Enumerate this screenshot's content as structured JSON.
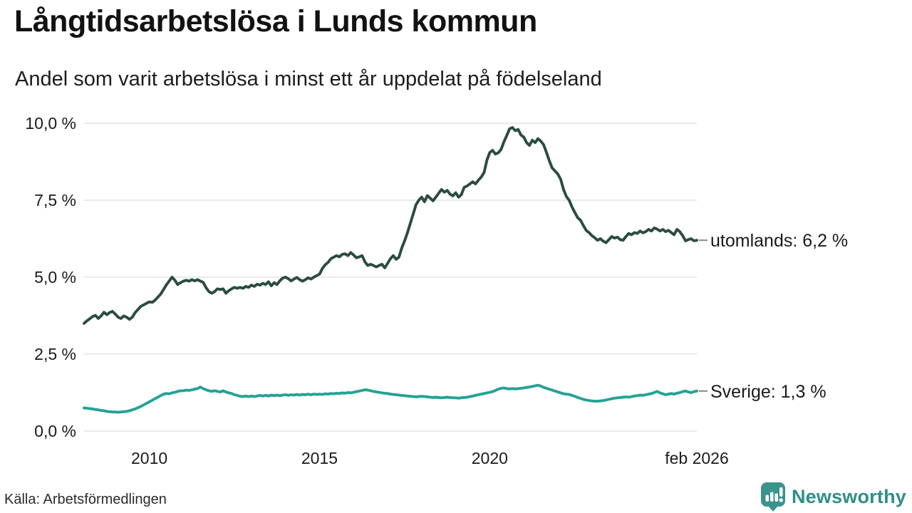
{
  "header": {
    "title": "Långtidsarbetslösa i Lunds kommun",
    "subtitle": "Andel som varit arbetslösa i minst ett år uppdelat på födelseland"
  },
  "footer": {
    "source": "Källa: Arbetsförmedlingen",
    "logo_text": "Newsworthy"
  },
  "colors": {
    "foreign_line": "#2b4c40",
    "sweden_line": "#24a294",
    "grid": "#e4e4e4",
    "label_dash": "#8a8a8a",
    "axis_text": "#1a1a1a",
    "brand_teal": "#3a938c"
  },
  "chart_data": {
    "type": "line",
    "title": "Långtidsarbetslösa i Lunds kommun",
    "subtitle": "Andel som varit arbetslösa i minst ett år uppdelat på födelseland",
    "unit": "%",
    "interval": "monthly",
    "start_month": "2008-02",
    "end_month": "2026-02",
    "ylim": [
      0,
      10
    ],
    "grid": true,
    "legend_position": "end-of-line-labels",
    "y_ticks": [
      {
        "value": 10,
        "label": "10,0 %"
      },
      {
        "value": 7.5,
        "label": "7,5 %"
      },
      {
        "value": 5,
        "label": "5,0 %"
      },
      {
        "value": 2.5,
        "label": "2,5 %"
      },
      {
        "value": 0,
        "label": "0,0 %"
      }
    ],
    "x_ticks": [
      {
        "label": "2010",
        "month_index": 23
      },
      {
        "label": "2015",
        "month_index": 83
      },
      {
        "label": "2020",
        "month_index": 143
      },
      {
        "label": "feb 2026",
        "month_index": 216
      }
    ],
    "series": [
      {
        "name": "utomlands",
        "end_label": "utomlands: 6,2 %",
        "end_value": 6.2,
        "color": "#2b4c40",
        "values": [
          3.5,
          3.58,
          3.65,
          3.72,
          3.76,
          3.66,
          3.74,
          3.86,
          3.78,
          3.85,
          3.89,
          3.8,
          3.7,
          3.66,
          3.74,
          3.7,
          3.63,
          3.7,
          3.85,
          3.95,
          4.05,
          4.1,
          4.15,
          4.2,
          4.18,
          4.25,
          4.35,
          4.45,
          4.6,
          4.75,
          4.87,
          5.0,
          4.9,
          4.76,
          4.82,
          4.87,
          4.9,
          4.87,
          4.92,
          4.88,
          4.92,
          4.87,
          4.83,
          4.66,
          4.53,
          4.48,
          4.53,
          4.62,
          4.6,
          4.62,
          4.48,
          4.56,
          4.62,
          4.67,
          4.64,
          4.67,
          4.64,
          4.7,
          4.67,
          4.74,
          4.7,
          4.77,
          4.74,
          4.8,
          4.76,
          4.85,
          4.72,
          4.82,
          4.76,
          4.88,
          4.97,
          5.0,
          4.95,
          4.88,
          4.94,
          4.99,
          4.92,
          4.87,
          4.92,
          4.98,
          4.94,
          5.0,
          5.05,
          5.1,
          5.28,
          5.4,
          5.48,
          5.6,
          5.65,
          5.7,
          5.66,
          5.74,
          5.76,
          5.7,
          5.8,
          5.72,
          5.63,
          5.66,
          5.7,
          5.5,
          5.38,
          5.42,
          5.38,
          5.33,
          5.38,
          5.42,
          5.3,
          5.45,
          5.6,
          5.7,
          5.58,
          5.65,
          5.95,
          6.18,
          6.45,
          6.75,
          7.05,
          7.35,
          7.5,
          7.6,
          7.45,
          7.65,
          7.57,
          7.48,
          7.6,
          7.73,
          7.85,
          7.76,
          7.82,
          7.7,
          7.64,
          7.74,
          7.6,
          7.68,
          7.92,
          7.96,
          8.03,
          8.1,
          8.03,
          8.15,
          8.25,
          8.4,
          8.8,
          9.05,
          9.12,
          9.0,
          9.04,
          9.15,
          9.4,
          9.6,
          9.82,
          9.86,
          9.76,
          9.8,
          9.62,
          9.55,
          9.37,
          9.28,
          9.45,
          9.37,
          9.5,
          9.42,
          9.3,
          9.05,
          8.78,
          8.55,
          8.45,
          8.35,
          8.18,
          7.85,
          7.62,
          7.5,
          7.28,
          7.1,
          6.93,
          6.85,
          6.68,
          6.52,
          6.45,
          6.35,
          6.28,
          6.2,
          6.25,
          6.17,
          6.12,
          6.22,
          6.32,
          6.27,
          6.3,
          6.22,
          6.2,
          6.32,
          6.42,
          6.38,
          6.45,
          6.42,
          6.5,
          6.44,
          6.48,
          6.55,
          6.5,
          6.6,
          6.56,
          6.5,
          6.55,
          6.48,
          6.52,
          6.45,
          6.38,
          6.55,
          6.48,
          6.35,
          6.18,
          6.22,
          6.25,
          6.18,
          6.2
        ]
      },
      {
        "name": "Sverige",
        "end_label": "Sverige: 1,3 %",
        "end_value": 1.3,
        "color": "#24a294",
        "values": [
          0.75,
          0.74,
          0.73,
          0.72,
          0.7,
          0.69,
          0.67,
          0.66,
          0.64,
          0.63,
          0.62,
          0.62,
          0.61,
          0.62,
          0.63,
          0.64,
          0.66,
          0.69,
          0.72,
          0.76,
          0.8,
          0.85,
          0.9,
          0.95,
          1.0,
          1.05,
          1.1,
          1.15,
          1.2,
          1.22,
          1.21,
          1.24,
          1.26,
          1.29,
          1.31,
          1.31,
          1.33,
          1.32,
          1.34,
          1.36,
          1.38,
          1.43,
          1.38,
          1.34,
          1.31,
          1.29,
          1.31,
          1.29,
          1.27,
          1.31,
          1.27,
          1.24,
          1.22,
          1.18,
          1.16,
          1.13,
          1.12,
          1.14,
          1.12,
          1.14,
          1.12,
          1.14,
          1.16,
          1.14,
          1.16,
          1.14,
          1.17,
          1.15,
          1.17,
          1.15,
          1.17,
          1.18,
          1.16,
          1.18,
          1.17,
          1.19,
          1.17,
          1.19,
          1.18,
          1.2,
          1.18,
          1.2,
          1.19,
          1.2,
          1.19,
          1.21,
          1.2,
          1.22,
          1.21,
          1.23,
          1.22,
          1.24,
          1.23,
          1.25,
          1.24,
          1.26,
          1.28,
          1.3,
          1.32,
          1.34,
          1.33,
          1.31,
          1.29,
          1.27,
          1.26,
          1.24,
          1.23,
          1.22,
          1.2,
          1.19,
          1.18,
          1.17,
          1.16,
          1.15,
          1.14,
          1.13,
          1.12,
          1.11,
          1.12,
          1.13,
          1.12,
          1.11,
          1.1,
          1.09,
          1.1,
          1.09,
          1.08,
          1.09,
          1.1,
          1.09,
          1.08,
          1.08,
          1.07,
          1.08,
          1.09,
          1.1,
          1.12,
          1.14,
          1.16,
          1.18,
          1.2,
          1.22,
          1.24,
          1.26,
          1.28,
          1.32,
          1.36,
          1.39,
          1.4,
          1.38,
          1.37,
          1.38,
          1.37,
          1.38,
          1.39,
          1.4,
          1.42,
          1.43,
          1.45,
          1.47,
          1.49,
          1.46,
          1.42,
          1.39,
          1.36,
          1.33,
          1.3,
          1.27,
          1.24,
          1.21,
          1.2,
          1.19,
          1.16,
          1.13,
          1.09,
          1.06,
          1.03,
          1.01,
          0.99,
          0.98,
          0.97,
          0.97,
          0.98,
          0.99,
          1.01,
          1.03,
          1.05,
          1.07,
          1.08,
          1.09,
          1.1,
          1.11,
          1.1,
          1.12,
          1.14,
          1.15,
          1.17,
          1.16,
          1.18,
          1.2,
          1.22,
          1.25,
          1.29,
          1.24,
          1.21,
          1.18,
          1.2,
          1.22,
          1.2,
          1.23,
          1.25,
          1.28,
          1.3,
          1.27,
          1.25,
          1.28,
          1.3
        ]
      }
    ]
  }
}
